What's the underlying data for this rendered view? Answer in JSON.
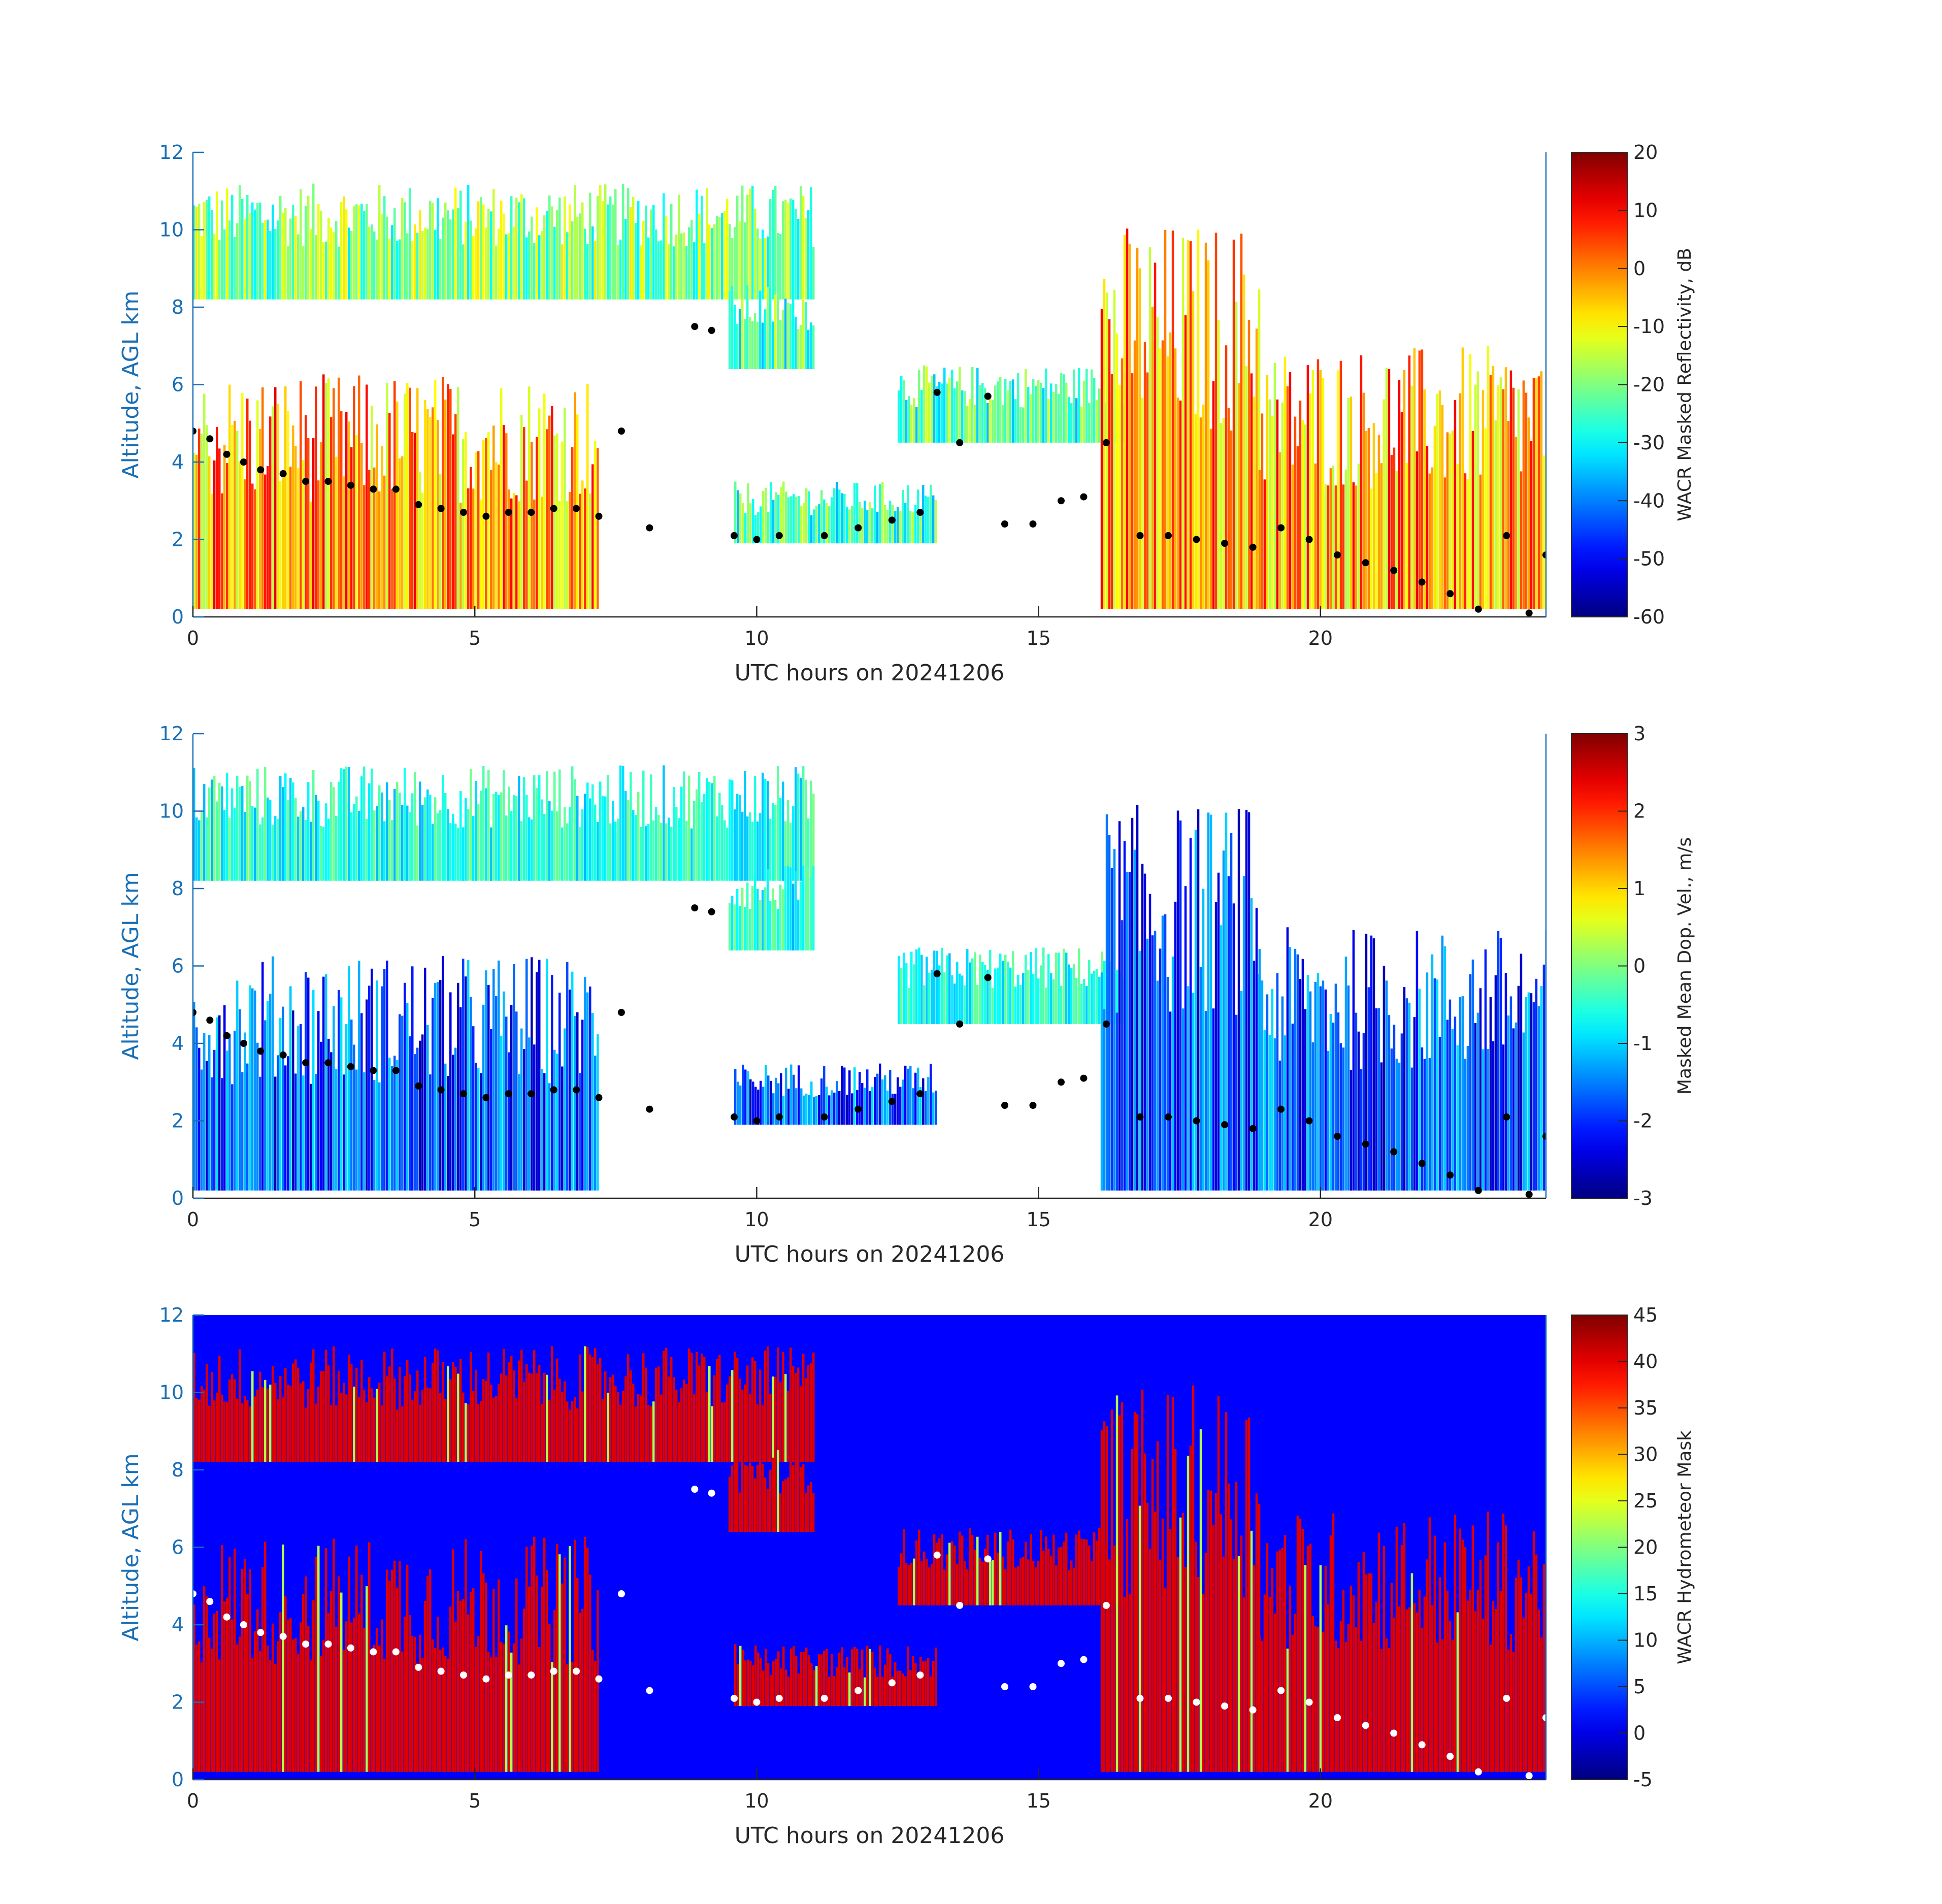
{
  "chart_data": [
    {
      "type": "heatmap",
      "xlabel": "UTC hours on 20241206",
      "ylabel": "Altitude, AGL km",
      "xlim": [
        0,
        24
      ],
      "ylim": [
        0,
        12
      ],
      "x_ticks": [
        "0",
        "5",
        "10",
        "15",
        "20"
      ],
      "y_ticks": [
        "0",
        "2",
        "4",
        "6",
        "8",
        "10",
        "12"
      ],
      "colorbar": {
        "label": "WACR Masked Reflectivity, dB",
        "range": [
          -60,
          20
        ],
        "ticks": [
          "20",
          "10",
          "0",
          "-10",
          "-20",
          "-30",
          "-40",
          "-50",
          "-60"
        ],
        "colormap": "jet"
      },
      "background": "#ffffff",
      "overlay_color": "#000000"
    },
    {
      "type": "heatmap",
      "xlabel": "UTC hours on 20241206",
      "ylabel": "Altitude, AGL km",
      "xlim": [
        0,
        24
      ],
      "ylim": [
        0,
        12
      ],
      "x_ticks": [
        "0",
        "5",
        "10",
        "15",
        "20"
      ],
      "y_ticks": [
        "0",
        "2",
        "4",
        "6",
        "8",
        "10",
        "12"
      ],
      "colorbar": {
        "label": "Masked Mean Dop. Vel., m/s",
        "range": [
          -3,
          3
        ],
        "ticks": [
          "3",
          "2",
          "1",
          "0",
          "-1",
          "-2",
          "-3"
        ],
        "colormap": "jet"
      },
      "background": "#ffffff",
      "overlay_color": "#000000"
    },
    {
      "type": "heatmap",
      "xlabel": "UTC hours on 20241206",
      "ylabel": "Altitude, AGL km",
      "xlim": [
        0,
        24
      ],
      "ylim": [
        0,
        12
      ],
      "x_ticks": [
        "0",
        "5",
        "10",
        "15",
        "20"
      ],
      "y_ticks": [
        "0",
        "2",
        "4",
        "6",
        "8",
        "10",
        "12"
      ],
      "colorbar": {
        "label": "WACR Hydrometeor Mask",
        "range": [
          -5,
          45
        ],
        "ticks": [
          "45",
          "40",
          "35",
          "30",
          "25",
          "20",
          "15",
          "10",
          "5",
          "0",
          "-5"
        ],
        "colormap": "jet"
      },
      "background": "#0000ff",
      "overlay_color": "#ffffff"
    }
  ],
  "cloud_layers": [
    {
      "x": [
        0,
        11
      ],
      "y": [
        8.2,
        11.2
      ]
    },
    {
      "x": [
        0,
        7.2
      ],
      "y": [
        0.2,
        6.3
      ]
    },
    {
      "x": [
        9.5,
        11
      ],
      "y": [
        6.4,
        8.6
      ]
    },
    {
      "x": [
        12.5,
        16.5
      ],
      "y": [
        4.5,
        6.5
      ]
    },
    {
      "x": [
        16.1,
        18.9
      ],
      "y": [
        0.2,
        10.2
      ]
    },
    {
      "x": [
        18.9,
        24
      ],
      "y": [
        0.2,
        7.0
      ]
    },
    {
      "x": [
        9.6,
        13.2
      ],
      "y": [
        1.9,
        3.5
      ]
    }
  ],
  "cloud_base": [
    [
      0.0,
      4.8
    ],
    [
      0.3,
      4.6
    ],
    [
      0.6,
      4.2
    ],
    [
      0.9,
      4.0
    ],
    [
      1.2,
      3.8
    ],
    [
      1.6,
      3.7
    ],
    [
      2.0,
      3.5
    ],
    [
      2.4,
      3.5
    ],
    [
      2.8,
      3.4
    ],
    [
      3.2,
      3.3
    ],
    [
      3.6,
      3.3
    ],
    [
      4.0,
      2.9
    ],
    [
      4.4,
      2.8
    ],
    [
      4.8,
      2.7
    ],
    [
      5.2,
      2.6
    ],
    [
      5.6,
      2.7
    ],
    [
      6.0,
      2.7
    ],
    [
      6.4,
      2.8
    ],
    [
      6.8,
      2.8
    ],
    [
      7.2,
      2.6
    ],
    [
      7.6,
      4.8
    ],
    [
      8.1,
      2.3
    ],
    [
      8.9,
      7.5
    ],
    [
      9.2,
      7.4
    ],
    [
      9.6,
      2.1
    ],
    [
      10.0,
      2.0
    ],
    [
      10.4,
      2.1
    ],
    [
      11.2,
      2.1
    ],
    [
      11.8,
      2.3
    ],
    [
      12.4,
      2.5
    ],
    [
      12.9,
      2.7
    ],
    [
      13.2,
      5.8
    ],
    [
      13.6,
      4.5
    ],
    [
      14.1,
      5.7
    ],
    [
      14.4,
      2.4
    ],
    [
      14.9,
      2.4
    ],
    [
      15.4,
      3.0
    ],
    [
      15.8,
      3.1
    ],
    [
      16.2,
      4.5
    ],
    [
      16.8,
      2.1
    ],
    [
      17.3,
      2.1
    ],
    [
      17.8,
      2.0
    ],
    [
      18.3,
      1.9
    ],
    [
      18.8,
      1.8
    ],
    [
      19.3,
      2.3
    ],
    [
      19.8,
      2.0
    ],
    [
      20.3,
      1.6
    ],
    [
      20.8,
      1.4
    ],
    [
      21.3,
      1.2
    ],
    [
      21.8,
      0.9
    ],
    [
      22.3,
      0.6
    ],
    [
      22.8,
      0.2
    ],
    [
      23.3,
      2.1
    ],
    [
      23.7,
      0.1
    ],
    [
      24.0,
      1.6
    ]
  ]
}
